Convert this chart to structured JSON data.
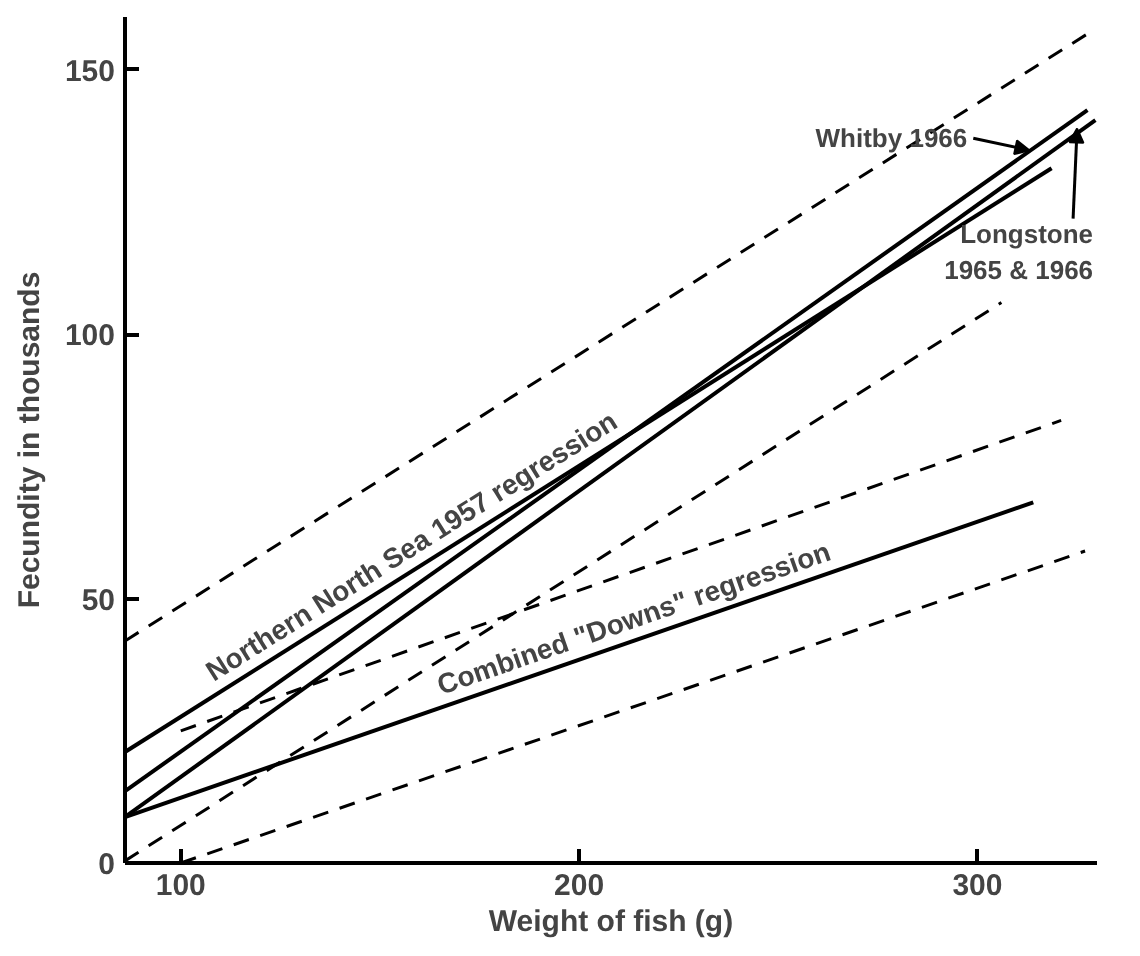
{
  "chart_data": {
    "type": "line",
    "xlabel": "Weight of fish (g)",
    "ylabel": "Fecundity in thousands",
    "xlim": [
      86,
      330
    ],
    "ylim": [
      0,
      160
    ],
    "xticks": [
      100,
      200,
      300
    ],
    "yticks": [
      0,
      50,
      100,
      150
    ],
    "grid": false,
    "series": [
      {
        "color": "#000000",
        "x": [
          86,
          328
        ],
        "values": [
          42,
          157
        ],
        "line_style": "dashed"
      },
      {
        "color": "#000000",
        "x": [
          86,
          318.6
        ],
        "values": [
          21,
          131.4
        ],
        "line_style": "solid"
      },
      {
        "color": "#000000",
        "x": [
          86,
          327.6
        ],
        "values": [
          13.6,
          142.4
        ],
        "line_style": "solid"
      },
      {
        "color": "#000000",
        "x": [
          86,
          329.6
        ],
        "values": [
          8.7,
          140.5
        ],
        "line_style": "solid"
      },
      {
        "color": "#000000",
        "x": [
          86,
          306
        ],
        "values": [
          0.4,
          106
        ],
        "line_style": "dashed"
      },
      {
        "color": "#000000",
        "x": [
          100,
          321
        ],
        "values": [
          25,
          83.7
        ],
        "line_style": "dashed"
      },
      {
        "color": "#000000",
        "x": [
          86,
          314
        ],
        "values": [
          8.7,
          68.2
        ],
        "line_style": "solid"
      },
      {
        "color": "#000000",
        "x": [
          100,
          327
        ],
        "values": [
          0,
          59
        ],
        "line_style": "dashed"
      }
    ],
    "annotations": [
      {
        "text": "Whitby 1966",
        "x": 313,
        "y": 134.8
      },
      {
        "text": "Longstone\n1965 & 1966",
        "x": 325,
        "y": 138.9
      },
      {
        "text": "Northern North Sea 1957 regression",
        "x": 160,
        "y": 56.3
      },
      {
        "text": "Combined \"Downs\" regression",
        "x": 215,
        "y": 42.4
      }
    ]
  }
}
